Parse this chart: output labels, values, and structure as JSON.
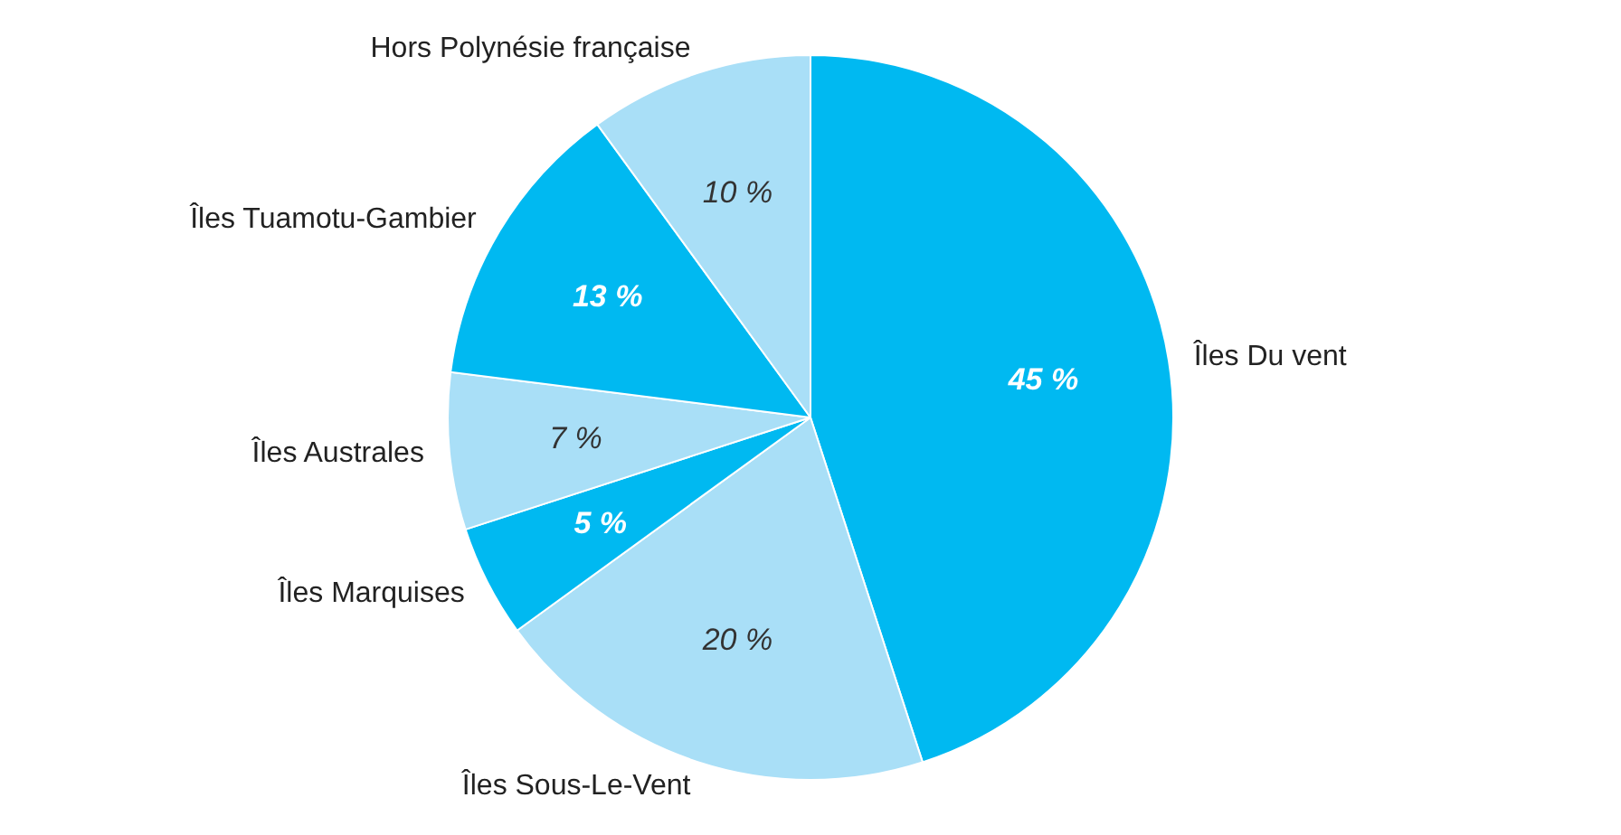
{
  "chart_data": {
    "type": "pie",
    "categories": [
      "Îles Du vent",
      "Îles Sous-Le-Vent",
      "Îles Marquises",
      "Îles Australes",
      "Îles Tuamotu-Gambier",
      "Hors Polynésie française"
    ],
    "values": [
      45,
      20,
      5,
      7,
      13,
      10
    ],
    "colors": [
      "#00b9f1",
      "#a9dff7",
      "#00b9f1",
      "#a9dff7",
      "#00b9f1",
      "#a9dff7"
    ],
    "value_labels": [
      "45 %",
      "20 %",
      "5 %",
      "7 %",
      "13 %",
      "10 %"
    ]
  }
}
